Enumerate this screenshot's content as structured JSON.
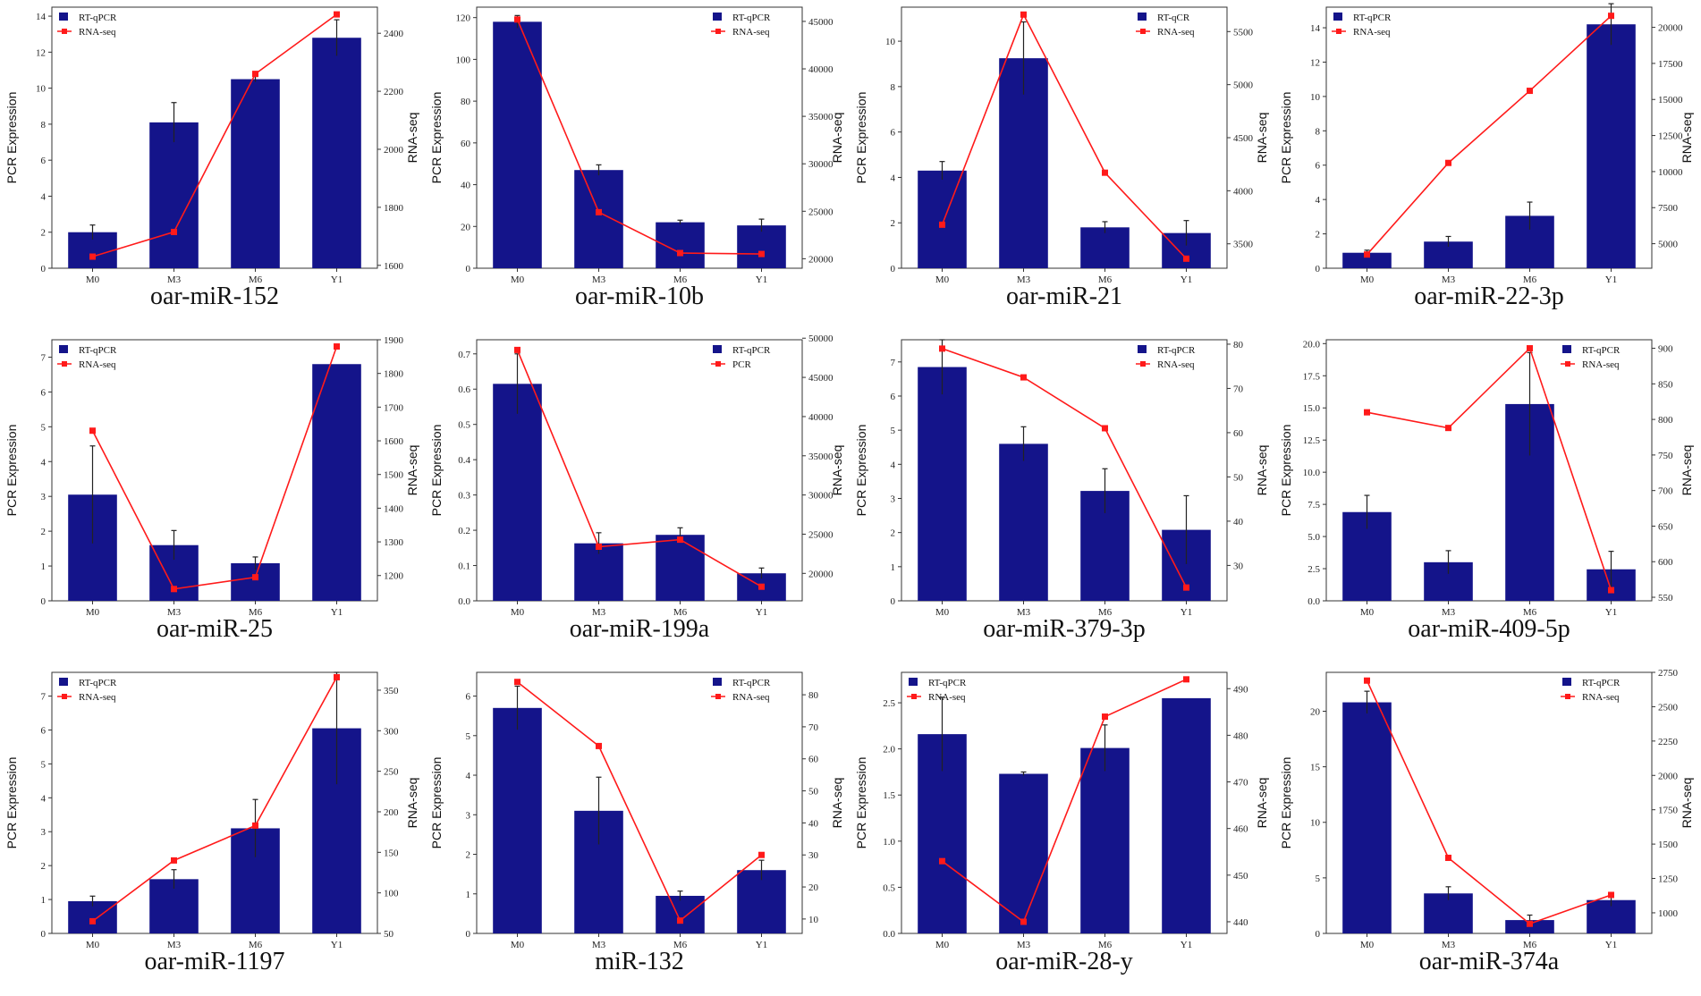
{
  "colors": {
    "bar": "#14148a",
    "line": "#ff1a1a",
    "err": "#222222"
  },
  "axis_labels": {
    "left": "PCR Expression",
    "right": "RNA-seq"
  },
  "chart_data": [
    {
      "type": "bar+line",
      "title": "oar-miR-152",
      "legend": [
        "RT-qPCR",
        "RNA-seq"
      ],
      "legend_pos": "top-left",
      "categories": [
        "M0",
        "M3",
        "M6",
        "Y1"
      ],
      "bar_values": [
        2.0,
        8.1,
        10.5,
        12.8
      ],
      "bar_errors": [
        0.4,
        1.1,
        0.15,
        1.0
      ],
      "line_values": [
        1630,
        1715,
        2260,
        2465
      ],
      "ylim_left": [
        0,
        14.5
      ],
      "yticks_left": [
        0,
        2,
        4,
        6,
        8,
        10,
        12,
        14
      ],
      "ylim_right": [
        1590,
        2490
      ],
      "yticks_right": [
        1600,
        1800,
        2000,
        2200,
        2400
      ]
    },
    {
      "type": "bar+line",
      "title": "oar-miR-10b",
      "legend": [
        "RT-qPCR",
        "RNA-seq"
      ],
      "legend_pos": "top-right",
      "categories": [
        "M0",
        "M3",
        "M6",
        "Y1"
      ],
      "bar_values": [
        118,
        47,
        22,
        20.5
      ],
      "bar_errors": [
        3,
        2.5,
        1,
        3
      ],
      "line_values": [
        45200,
        24900,
        20600,
        20500
      ],
      "ylim_left": [
        0,
        125
      ],
      "yticks_left": [
        0,
        20,
        40,
        60,
        80,
        100,
        120
      ],
      "ylim_right": [
        19000,
        46500
      ],
      "yticks_right": [
        20000,
        25000,
        30000,
        35000,
        40000,
        45000
      ]
    },
    {
      "type": "bar+line",
      "title": "oar-miR-21",
      "legend": [
        "RT-qCR",
        "RNA-seq"
      ],
      "legend_pos": "top-right",
      "categories": [
        "M0",
        "M3",
        "M6",
        "Y1"
      ],
      "bar_values": [
        4.3,
        9.25,
        1.8,
        1.55
      ],
      "bar_errors": [
        0.4,
        1.6,
        0.25,
        0.55
      ],
      "line_values": [
        3680,
        5660,
        4170,
        3360
      ],
      "ylim_left": [
        0,
        11.5
      ],
      "yticks_left": [
        0,
        2,
        4,
        6,
        8,
        10
      ],
      "ylim_right": [
        3270,
        5730
      ],
      "yticks_right": [
        3500,
        4000,
        4500,
        5000,
        5500
      ]
    },
    {
      "type": "bar+line",
      "title": "oar-miR-22-3p",
      "legend": [
        "RT-qPCR",
        "RNA-seq"
      ],
      "legend_pos": "top-left",
      "categories": [
        "M0",
        "M3",
        "M6",
        "Y1"
      ],
      "bar_values": [
        0.9,
        1.55,
        3.05,
        14.2
      ],
      "bar_errors": [
        0.15,
        0.3,
        0.8,
        1.2
      ],
      "line_values": [
        4250,
        10600,
        15600,
        20800
      ],
      "ylim_left": [
        0,
        15.2
      ],
      "yticks_left": [
        0,
        2,
        4,
        6,
        8,
        10,
        12,
        14
      ],
      "ylim_right": [
        3300,
        21400
      ],
      "yticks_right": [
        5000,
        7500,
        10000,
        12500,
        15000,
        17500,
        20000
      ]
    },
    {
      "type": "bar+line",
      "title": "oar-miR-25",
      "legend": [
        "RT-qPCR",
        "RNA-seq"
      ],
      "legend_pos": "top-left",
      "categories": [
        "M0",
        "M3",
        "M6",
        "Y1"
      ],
      "bar_values": [
        3.05,
        1.6,
        1.08,
        6.8
      ],
      "bar_errors": [
        1.4,
        0.42,
        0.18,
        0.0
      ],
      "line_values": [
        1630,
        1160,
        1195,
        1880
      ],
      "ylim_left": [
        0,
        7.5
      ],
      "yticks_left": [
        0,
        1,
        2,
        3,
        4,
        5,
        6,
        7
      ],
      "ylim_right": [
        1125,
        1900
      ],
      "yticks_right": [
        1200,
        1300,
        1400,
        1500,
        1600,
        1700,
        1800,
        1900
      ]
    },
    {
      "type": "bar+line",
      "title": "oar-miR-199a",
      "legend": [
        "RT-qPCR",
        "PCR"
      ],
      "legend_pos": "top-right",
      "categories": [
        "M0",
        "M3",
        "M6",
        "Y1"
      ],
      "bar_values": [
        0.615,
        0.163,
        0.187,
        0.078
      ],
      "bar_errors": [
        0.085,
        0.03,
        0.02,
        0.015
      ],
      "line_values": [
        48500,
        23400,
        24300,
        18300
      ],
      "ylim_left": [
        0,
        0.74
      ],
      "yticks_left": [
        0.0,
        0.1,
        0.2,
        0.3,
        0.4,
        0.5,
        0.6,
        0.7
      ],
      "ylim_right": [
        16500,
        49800
      ],
      "yticks_right": [
        20000,
        25000,
        30000,
        35000,
        40000,
        45000,
        50000
      ]
    },
    {
      "type": "bar+line",
      "title": "oar-miR-379-3p",
      "legend": [
        "RT-qPCR",
        "RNA-seq"
      ],
      "legend_pos": "top-right",
      "categories": [
        "M0",
        "M3",
        "M6",
        "Y1"
      ],
      "bar_values": [
        6.85,
        4.6,
        3.22,
        2.08
      ],
      "bar_errors": [
        0.8,
        0.5,
        0.65,
        1.0
      ],
      "line_values": [
        79,
        72.5,
        61,
        25
      ],
      "ylim_left": [
        0,
        7.65
      ],
      "yticks_left": [
        0,
        1,
        2,
        3,
        4,
        5,
        6,
        7
      ],
      "ylim_right": [
        22,
        81
      ],
      "yticks_right": [
        30,
        40,
        50,
        60,
        70,
        80
      ]
    },
    {
      "type": "bar+line",
      "title": "oar-miR-409-5p",
      "legend": [
        "RT-qPCR",
        "RNA-seq"
      ],
      "legend_pos": "top-right",
      "categories": [
        "M0",
        "M3",
        "M6",
        "Y1"
      ],
      "bar_values": [
        6.9,
        3.0,
        15.3,
        2.45
      ],
      "bar_errors": [
        1.3,
        0.9,
        4.0,
        1.4
      ],
      "line_values": [
        810,
        788,
        900,
        560
      ],
      "ylim_left": [
        0,
        20.3
      ],
      "yticks_left": [
        0.0,
        2.5,
        5.0,
        7.5,
        10.0,
        12.5,
        15.0,
        17.5,
        20.0
      ],
      "ylim_right": [
        545,
        912
      ],
      "yticks_right": [
        550,
        600,
        650,
        700,
        750,
        800,
        850,
        900
      ]
    },
    {
      "type": "bar+line",
      "title": "oar-miR-1197",
      "legend": [
        "RT-qPCR",
        "RNA-seq"
      ],
      "legend_pos": "top-left",
      "categories": [
        "M0",
        "M3",
        "M6",
        "Y1"
      ],
      "bar_values": [
        0.95,
        1.6,
        3.1,
        6.05
      ],
      "bar_errors": [
        0.15,
        0.28,
        0.85,
        1.65
      ],
      "line_values": [
        65,
        140,
        183,
        366
      ],
      "ylim_left": [
        0,
        7.7
      ],
      "yticks_left": [
        0,
        1,
        2,
        3,
        4,
        5,
        6,
        7
      ],
      "ylim_right": [
        50,
        372
      ],
      "yticks_right": [
        50,
        100,
        150,
        200,
        250,
        300,
        350
      ]
    },
    {
      "type": "bar+line",
      "title": "miR-132",
      "legend": [
        "RT-qPCR",
        "RNA-seq"
      ],
      "legend_pos": "top-right",
      "categories": [
        "M0",
        "M3",
        "M6",
        "Y1"
      ],
      "bar_values": [
        5.7,
        3.1,
        0.95,
        1.6
      ],
      "bar_errors": [
        0.55,
        0.85,
        0.12,
        0.25
      ],
      "line_values": [
        84,
        64,
        9.5,
        30
      ],
      "ylim_left": [
        0,
        6.6
      ],
      "yticks_left": [
        0,
        1,
        2,
        3,
        4,
        5,
        6
      ],
      "ylim_right": [
        5.5,
        87
      ],
      "yticks_right": [
        10,
        20,
        30,
        40,
        50,
        60,
        70,
        80
      ]
    },
    {
      "type": "bar+line",
      "title": "oar-miR-28-y",
      "legend": [
        "RT-qPCR",
        "RNA-seq"
      ],
      "legend_pos": "top-left",
      "categories": [
        "M0",
        "M3",
        "M6",
        "Y1"
      ],
      "bar_values": [
        2.16,
        1.73,
        2.01,
        2.55
      ],
      "bar_errors": [
        0.4,
        0.02,
        0.25,
        0.0
      ],
      "line_values": [
        453,
        440,
        484,
        492
      ],
      "ylim_left": [
        0,
        2.83
      ],
      "yticks_left": [
        0.0,
        0.5,
        1.0,
        1.5,
        2.0,
        2.5
      ],
      "ylim_right": [
        437.5,
        493.5
      ],
      "yticks_right": [
        440,
        450,
        460,
        470,
        480,
        490
      ]
    },
    {
      "type": "bar+line",
      "title": "oar-miR-374a",
      "legend": [
        "RT-qPCR",
        "RNA-seq"
      ],
      "legend_pos": "top-right",
      "categories": [
        "M0",
        "M3",
        "M6",
        "Y1"
      ],
      "bar_values": [
        20.8,
        3.6,
        1.2,
        3.0
      ],
      "bar_errors": [
        1.0,
        0.6,
        0.45,
        0.55
      ],
      "line_values": [
        2690,
        1400,
        920,
        1130
      ],
      "ylim_left": [
        0,
        23.5
      ],
      "yticks_left": [
        0,
        5,
        10,
        15,
        20
      ],
      "ylim_right": [
        850,
        2750
      ],
      "yticks_right": [
        1000,
        1250,
        1500,
        1750,
        2000,
        2250,
        2500,
        2750
      ]
    }
  ]
}
